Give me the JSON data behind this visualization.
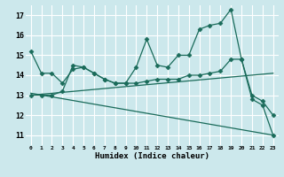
{
  "xlabel": "Humidex (Indice chaleur)",
  "ylabel": "",
  "background_color": "#cce8ec",
  "grid_color": "#ffffff",
  "line_color": "#1a6b5a",
  "xlim": [
    -0.5,
    23.5
  ],
  "ylim": [
    10.5,
    17.5
  ],
  "yticks": [
    11,
    12,
    13,
    14,
    15,
    16,
    17
  ],
  "xticks": [
    0,
    1,
    2,
    3,
    4,
    5,
    6,
    7,
    8,
    9,
    10,
    11,
    12,
    13,
    14,
    15,
    16,
    17,
    18,
    19,
    20,
    21,
    22,
    23
  ],
  "series": [
    {
      "x": [
        0,
        1,
        2,
        3,
        4,
        5,
        6,
        7,
        8,
        9,
        10,
        11,
        12,
        13,
        14,
        15,
        16,
        17,
        18,
        19,
        20,
        21,
        22,
        23
      ],
      "y": [
        15.2,
        14.1,
        14.1,
        13.6,
        14.3,
        14.4,
        14.1,
        13.8,
        13.6,
        13.6,
        14.4,
        15.8,
        14.5,
        14.4,
        15.0,
        15.0,
        16.3,
        16.5,
        16.6,
        17.3,
        14.8,
        13.0,
        12.7,
        12.0
      ],
      "marker": "D",
      "markersize": 2.5,
      "linewidth": 0.9,
      "has_marker": true
    },
    {
      "x": [
        0,
        23
      ],
      "y": [
        13.0,
        14.1
      ],
      "marker": null,
      "markersize": 0,
      "linewidth": 0.9,
      "has_marker": false
    },
    {
      "x": [
        0,
        23
      ],
      "y": [
        13.1,
        11.0
      ],
      "marker": null,
      "markersize": 0,
      "linewidth": 0.9,
      "has_marker": false
    },
    {
      "x": [
        0,
        1,
        2,
        3,
        4,
        5,
        6,
        7,
        8,
        9,
        10,
        11,
        12,
        13,
        14,
        15,
        16,
        17,
        18,
        19,
        20,
        21,
        22,
        23
      ],
      "y": [
        13.0,
        13.0,
        13.0,
        13.2,
        14.5,
        14.4,
        14.1,
        13.8,
        13.6,
        13.6,
        13.6,
        13.7,
        13.8,
        13.8,
        13.8,
        14.0,
        14.0,
        14.1,
        14.2,
        14.8,
        14.8,
        12.8,
        12.5,
        11.0
      ],
      "marker": "D",
      "markersize": 2.5,
      "linewidth": 0.9,
      "has_marker": true
    }
  ]
}
